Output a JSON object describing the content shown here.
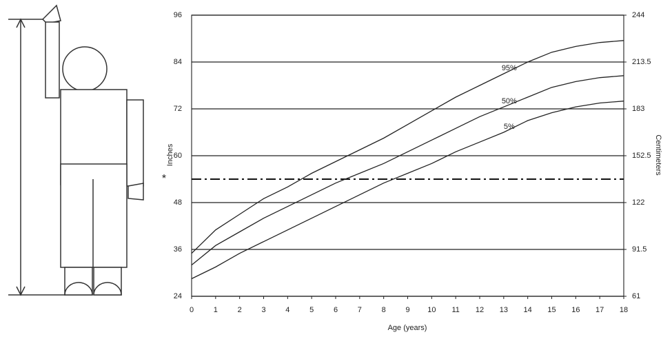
{
  "chart_data": {
    "type": "line",
    "x_label": "Age (years)",
    "y_label": "Inches",
    "y2_label": "Centimeters",
    "x": [
      0,
      1,
      2,
      3,
      4,
      5,
      6,
      7,
      8,
      9,
      10,
      11,
      12,
      13,
      14,
      15,
      16,
      17,
      18
    ],
    "xlim": [
      0,
      18
    ],
    "xticks": [
      0,
      1,
      2,
      3,
      4,
      5,
      6,
      7,
      8,
      9,
      10,
      11,
      12,
      13,
      14,
      15,
      16,
      17,
      18
    ],
    "ylim": [
      24,
      96
    ],
    "yticks": [
      24,
      36,
      48,
      60,
      72,
      84,
      96
    ],
    "y2lim": [
      61,
      244
    ],
    "y2ticks": [
      61,
      91.5,
      122,
      152.5,
      183,
      213.5,
      244
    ],
    "grid": true,
    "reference_line": {
      "value": 54,
      "label": "*"
    },
    "series": [
      {
        "name": "95%",
        "color": "#222222",
        "values": [
          35,
          41,
          45,
          49,
          52,
          55.5,
          58.5,
          61.5,
          64.5,
          68,
          71.5,
          75,
          78,
          81,
          84,
          86.5,
          88,
          89,
          89.5
        ]
      },
      {
        "name": "50%",
        "color": "#222222",
        "values": [
          32,
          37,
          40.5,
          44,
          47,
          50,
          53,
          55.5,
          58,
          61,
          64,
          67,
          70,
          72.5,
          75,
          77.5,
          79,
          80,
          80.5
        ]
      },
      {
        "name": "5%",
        "color": "#222222",
        "values": [
          28.5,
          31.5,
          35,
          38,
          41,
          44,
          47,
          50,
          53,
          55.5,
          58,
          61,
          63.5,
          66,
          69,
          71,
          72.5,
          73.5,
          74
        ]
      }
    ]
  }
}
